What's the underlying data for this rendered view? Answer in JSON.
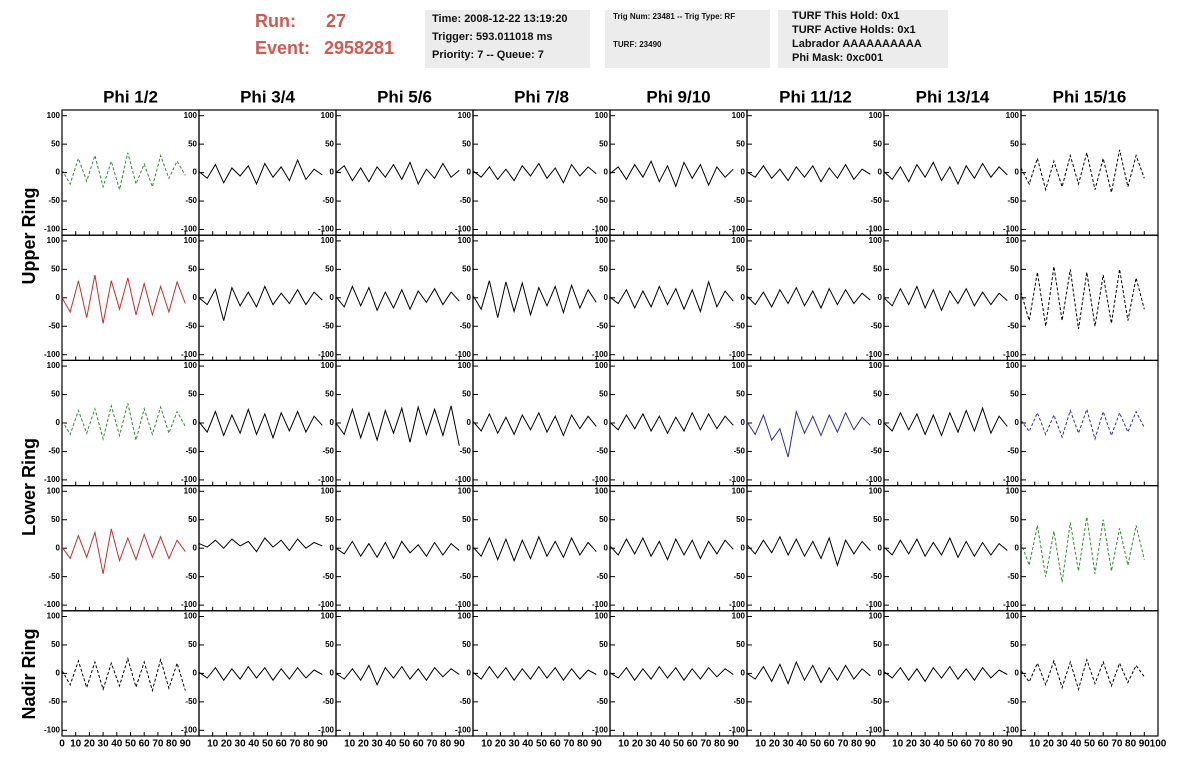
{
  "header": {
    "run_label": "Run:",
    "run": "27",
    "event_label": "Event:",
    "event": "2958281",
    "box1": [
      "Time: 2008-12-22 13:19:20",
      "Trigger: 593.011018 ms",
      "Priority: 7 -- Queue: 7"
    ],
    "box2": [
      "Trig Num: 23481 -- Trig Type: RF",
      "TURF: 23490"
    ],
    "box3": [
      "TURF This Hold: 0x1",
      "TURF Active Holds: 0x1",
      "Labrador AAAAAAAAAA",
      "Phi Mask: 0xc001"
    ]
  },
  "columns": [
    "Phi 1/2",
    "Phi 3/4",
    "Phi 5/6",
    "Phi 7/8",
    "Phi 9/10",
    "Phi 11/12",
    "Phi 13/14",
    "Phi 15/16"
  ],
  "ring_labels": [
    "Upper Ring",
    "Lower Ring",
    "Nadir Ring"
  ],
  "axes": {
    "xlim": [
      0,
      100
    ],
    "ylim": [
      -110,
      110
    ],
    "xticks": [
      0,
      10,
      20,
      30,
      40,
      50,
      60,
      70,
      80,
      90,
      100
    ],
    "yticks": [
      100,
      50,
      0,
      -50,
      -100
    ],
    "x": [
      0,
      6,
      12,
      18,
      24,
      30,
      36,
      42,
      48,
      54,
      60,
      66,
      72,
      78,
      84,
      90
    ]
  },
  "panels": [
    [
      {
        "color": "#2e8b2e",
        "dashed": true,
        "values": [
          5,
          -20,
          25,
          -15,
          30,
          -25,
          20,
          -30,
          35,
          -20,
          15,
          -25,
          30,
          -10,
          20,
          -5
        ]
      },
      {
        "color": "#000000",
        "dashed": false,
        "values": [
          2,
          -10,
          14,
          -18,
          8,
          -6,
          12,
          -20,
          16,
          -8,
          10,
          -14,
          22,
          -12,
          6,
          -4
        ]
      },
      {
        "color": "#000000",
        "dashed": false,
        "values": [
          0,
          12,
          -14,
          8,
          -16,
          10,
          -8,
          14,
          -12,
          18,
          -20,
          6,
          -10,
          16,
          -8,
          4
        ]
      },
      {
        "color": "#000000",
        "dashed": false,
        "values": [
          3,
          -8,
          10,
          -12,
          6,
          -14,
          12,
          -6,
          16,
          -10,
          8,
          -18,
          14,
          -6,
          10,
          -2
        ]
      },
      {
        "color": "#000000",
        "dashed": false,
        "values": [
          -2,
          10,
          -12,
          14,
          -8,
          20,
          -16,
          12,
          -24,
          18,
          -10,
          14,
          -22,
          10,
          -8,
          6
        ]
      },
      {
        "color": "#000000",
        "dashed": false,
        "values": [
          1,
          -8,
          12,
          -10,
          6,
          -14,
          10,
          -8,
          12,
          -16,
          8,
          -10,
          14,
          -12,
          6,
          -3
        ]
      },
      {
        "color": "#000000",
        "dashed": false,
        "values": [
          2,
          -12,
          10,
          -16,
          14,
          -8,
          18,
          -14,
          10,
          -20,
          12,
          -10,
          16,
          -8,
          10,
          -4
        ]
      },
      {
        "color": "#000000",
        "dashed": true,
        "values": [
          8,
          -20,
          25,
          -30,
          20,
          -25,
          30,
          -20,
          35,
          -30,
          25,
          -35,
          40,
          -25,
          30,
          -10
        ]
      }
    ],
    [
      {
        "color": "#c0302f",
        "dashed": false,
        "values": [
          0,
          -25,
          30,
          -35,
          40,
          -45,
          30,
          -20,
          35,
          -30,
          25,
          -30,
          20,
          -25,
          28,
          -10
        ]
      },
      {
        "color": "#000000",
        "dashed": false,
        "values": [
          0,
          -12,
          15,
          -40,
          18,
          -14,
          10,
          -16,
          20,
          -12,
          8,
          -10,
          14,
          -12,
          10,
          -4
        ]
      },
      {
        "color": "#000000",
        "dashed": false,
        "values": [
          2,
          -16,
          20,
          -14,
          18,
          -22,
          10,
          -18,
          14,
          -20,
          12,
          -8,
          16,
          -12,
          10,
          -6
        ]
      },
      {
        "color": "#000000",
        "dashed": false,
        "values": [
          4,
          -20,
          30,
          -35,
          28,
          -24,
          26,
          -30,
          18,
          -14,
          20,
          -26,
          22,
          -18,
          14,
          -8
        ]
      },
      {
        "color": "#000000",
        "dashed": false,
        "values": [
          1,
          -10,
          14,
          -18,
          12,
          -16,
          20,
          -12,
          16,
          -20,
          14,
          -24,
          28,
          -16,
          12,
          -6
        ]
      },
      {
        "color": "#000000",
        "dashed": false,
        "values": [
          3,
          -12,
          10,
          -16,
          14,
          -10,
          18,
          -14,
          12,
          -18,
          16,
          -12,
          14,
          -10,
          8,
          -4
        ]
      },
      {
        "color": "#000000",
        "dashed": false,
        "values": [
          0,
          -14,
          16,
          -12,
          20,
          -18,
          14,
          -22,
          12,
          -10,
          16,
          -14,
          10,
          -12,
          8,
          -5
        ]
      },
      {
        "color": "#000000",
        "dashed": true,
        "values": [
          10,
          -40,
          45,
          -50,
          55,
          -40,
          50,
          -55,
          45,
          -50,
          40,
          -45,
          50,
          -40,
          35,
          -20
        ]
      }
    ],
    [
      {
        "color": "#2e8b2e",
        "dashed": true,
        "values": [
          4,
          -20,
          22,
          -18,
          25,
          -28,
          30,
          -22,
          35,
          -30,
          25,
          -20,
          28,
          -18,
          20,
          -6
        ]
      },
      {
        "color": "#000000",
        "dashed": false,
        "values": [
          2,
          -16,
          20,
          -22,
          14,
          -18,
          24,
          -20,
          16,
          -26,
          18,
          -14,
          20,
          -16,
          12,
          -4
        ]
      },
      {
        "color": "#000000",
        "dashed": false,
        "values": [
          0,
          -20,
          24,
          -26,
          18,
          -30,
          22,
          -18,
          26,
          -34,
          28,
          -20,
          24,
          -22,
          30,
          -40
        ]
      },
      {
        "color": "#000000",
        "dashed": false,
        "values": [
          3,
          -14,
          16,
          -18,
          10,
          -20,
          14,
          -12,
          18,
          -16,
          12,
          -22,
          14,
          -10,
          12,
          -6
        ]
      },
      {
        "color": "#000000",
        "dashed": false,
        "values": [
          1,
          -12,
          14,
          -10,
          16,
          -14,
          12,
          -18,
          10,
          -14,
          18,
          -12,
          16,
          -10,
          12,
          -4
        ]
      },
      {
        "color": "#2b2f9b",
        "dashed": false,
        "values": [
          2,
          -20,
          14,
          -30,
          -10,
          -60,
          20,
          -18,
          12,
          -22,
          14,
          -16,
          18,
          -12,
          10,
          -4
        ]
      },
      {
        "color": "#000000",
        "dashed": false,
        "values": [
          0,
          -14,
          18,
          -12,
          16,
          -20,
          14,
          -22,
          18,
          -16,
          22,
          -14,
          26,
          -18,
          12,
          -6
        ]
      },
      {
        "color": "#2b2f9b",
        "dashed": true,
        "values": [
          5,
          -15,
          18,
          -20,
          14,
          -25,
          22,
          -18,
          24,
          -28,
          20,
          -22,
          18,
          -16,
          20,
          -8
        ]
      }
    ],
    [
      {
        "color": "#c0302f",
        "dashed": false,
        "values": [
          2,
          -18,
          22,
          -16,
          28,
          -45,
          34,
          -22,
          18,
          -20,
          24,
          -16,
          20,
          -18,
          14,
          -6
        ]
      },
      {
        "color": "#000000",
        "dashed": false,
        "values": [
          8,
          2,
          14,
          0,
          16,
          4,
          12,
          -6,
          18,
          2,
          14,
          -4,
          16,
          0,
          10,
          4
        ]
      },
      {
        "color": "#000000",
        "dashed": false,
        "values": [
          0,
          -10,
          12,
          -14,
          8,
          -16,
          10,
          -18,
          12,
          -8,
          6,
          -14,
          10,
          -12,
          8,
          -4
        ]
      },
      {
        "color": "#000000",
        "dashed": false,
        "values": [
          2,
          -14,
          18,
          -20,
          16,
          -22,
          14,
          -18,
          20,
          -14,
          12,
          -16,
          18,
          -12,
          10,
          -6
        ]
      },
      {
        "color": "#000000",
        "dashed": false,
        "values": [
          4,
          -12,
          16,
          -10,
          18,
          -14,
          12,
          -20,
          16,
          -12,
          14,
          -18,
          12,
          -10,
          14,
          -2
        ]
      },
      {
        "color": "#000000",
        "dashed": false,
        "values": [
          6,
          -10,
          14,
          -8,
          20,
          -12,
          16,
          -14,
          12,
          -18,
          18,
          -30,
          14,
          -10,
          12,
          -4
        ]
      },
      {
        "color": "#000000",
        "dashed": false,
        "values": [
          2,
          -12,
          14,
          -10,
          16,
          -14,
          10,
          -12,
          18,
          -16,
          12,
          -14,
          10,
          -12,
          8,
          -4
        ]
      },
      {
        "color": "#2e8b2e",
        "dashed": true,
        "values": [
          10,
          -30,
          40,
          -50,
          30,
          -60,
          45,
          -40,
          55,
          -45,
          50,
          -40,
          35,
          -30,
          40,
          -20
        ]
      }
    ],
    [
      {
        "color": "#000000",
        "dashed": true,
        "values": [
          5,
          -20,
          22,
          -25,
          20,
          -28,
          18,
          -22,
          26,
          -24,
          20,
          -30,
          24,
          -26,
          18,
          -30
        ]
      },
      {
        "color": "#000000",
        "dashed": false,
        "values": [
          2,
          -8,
          10,
          -12,
          8,
          -10,
          12,
          -8,
          10,
          -12,
          8,
          -10,
          10,
          -8,
          6,
          -2
        ]
      },
      {
        "color": "#000000",
        "dashed": false,
        "values": [
          0,
          -10,
          8,
          -12,
          14,
          -20,
          10,
          -8,
          12,
          -10,
          8,
          -12,
          10,
          -6,
          8,
          -2
        ]
      },
      {
        "color": "#000000",
        "dashed": false,
        "values": [
          2,
          -10,
          12,
          -8,
          10,
          -12,
          8,
          -10,
          12,
          -8,
          10,
          -12,
          8,
          -10,
          6,
          -2
        ]
      },
      {
        "color": "#000000",
        "dashed": false,
        "values": [
          1,
          -8,
          10,
          -12,
          8,
          -10,
          12,
          -8,
          10,
          -12,
          8,
          -10,
          10,
          -6,
          8,
          -2
        ]
      },
      {
        "color": "#000000",
        "dashed": false,
        "values": [
          0,
          -10,
          12,
          -14,
          16,
          -18,
          20,
          -12,
          14,
          -16,
          10,
          -12,
          14,
          -10,
          8,
          -4
        ]
      },
      {
        "color": "#000000",
        "dashed": false,
        "values": [
          3,
          -8,
          10,
          -12,
          8,
          -14,
          10,
          -8,
          12,
          -10,
          8,
          -12,
          10,
          -8,
          6,
          -2
        ]
      },
      {
        "color": "#000000",
        "dashed": true,
        "values": [
          5,
          -15,
          18,
          -20,
          22,
          -25,
          20,
          -28,
          24,
          -18,
          20,
          -22,
          18,
          -16,
          14,
          -6
        ]
      }
    ]
  ]
}
